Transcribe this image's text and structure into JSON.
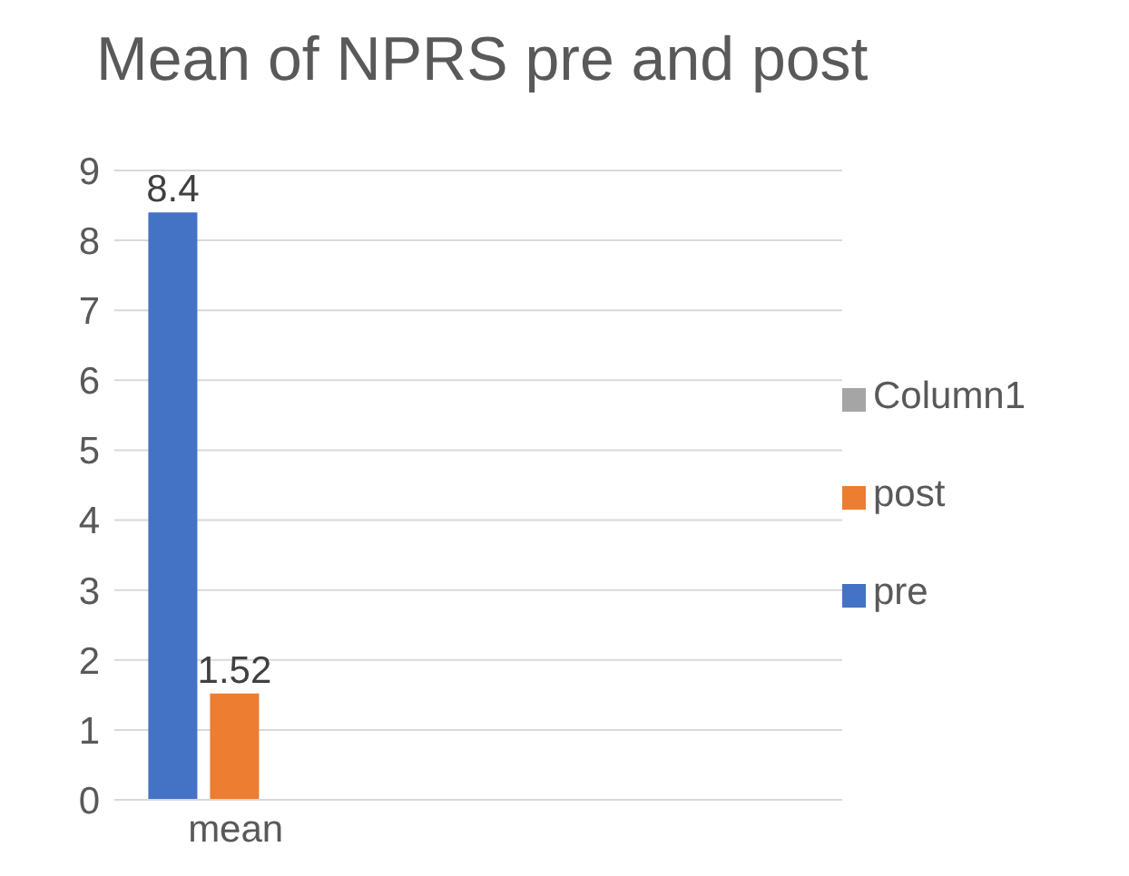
{
  "chart_data": {
    "type": "bar",
    "title": "Mean of NPRS pre and post",
    "categories": [
      "mean",
      null,
      null
    ],
    "series": [
      {
        "name": "pre",
        "color": "#4472c4",
        "values": [
          8.4,
          null,
          null
        ]
      },
      {
        "name": "post",
        "color": "#ed7d31",
        "values": [
          1.52,
          null,
          null
        ]
      },
      {
        "name": "Column1",
        "color": "#a5a5a5",
        "values": [
          null,
          null,
          null
        ]
      }
    ],
    "ylim": [
      0,
      9
    ],
    "yticks": [
      0,
      1,
      2,
      3,
      4,
      5,
      6,
      7,
      8,
      9
    ],
    "grid": "y",
    "legend": "right",
    "data_labels": true
  }
}
